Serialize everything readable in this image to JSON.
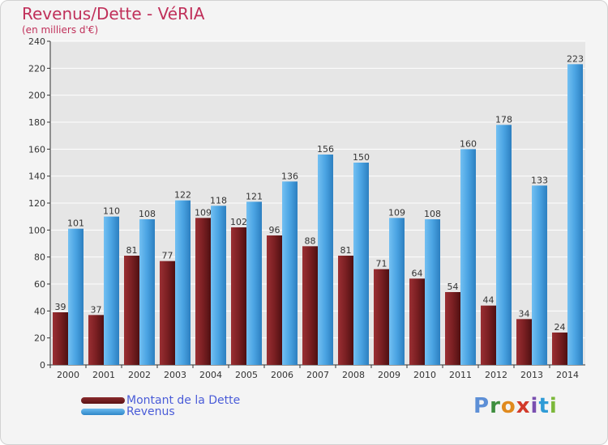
{
  "header": {
    "title": "Revenus/Dette - VéRIA",
    "subtitle": "(en milliers d'€)"
  },
  "legend": {
    "debt_label": "Montant de la Dette",
    "revenue_label": "Revenus"
  },
  "logo": {
    "letters": [
      "P",
      "r",
      "o",
      "x",
      "i",
      "t",
      "i"
    ]
  },
  "colors": {
    "debt": "#7a1f22",
    "revenue": "#4aa3e2",
    "axis_text": "#333333",
    "grid": "#ffffff",
    "title": "#c0305a",
    "legend_text": "#4a5cd8"
  },
  "chart_data": {
    "type": "bar",
    "title": "Revenus/Dette - VéRIA",
    "subtitle": "(en milliers d'€)",
    "xlabel": "",
    "ylabel": "",
    "ylim": [
      0,
      240
    ],
    "yticks": [
      0,
      20,
      40,
      60,
      80,
      100,
      120,
      140,
      160,
      180,
      200,
      220,
      240
    ],
    "grid": true,
    "legend_position": "bottom-left",
    "categories": [
      "2000",
      "2001",
      "2002",
      "2003",
      "2004",
      "2005",
      "2006",
      "2007",
      "2008",
      "2009",
      "2010",
      "2011",
      "2012",
      "2013",
      "2014"
    ],
    "series": [
      {
        "name": "Montant de la Dette",
        "values": [
          39,
          37,
          81,
          77,
          109,
          102,
          96,
          88,
          81,
          71,
          64,
          54,
          44,
          34,
          24
        ]
      },
      {
        "name": "Revenus",
        "values": [
          101,
          110,
          108,
          122,
          118,
          121,
          136,
          156,
          150,
          109,
          108,
          160,
          178,
          133,
          223
        ]
      }
    ]
  }
}
